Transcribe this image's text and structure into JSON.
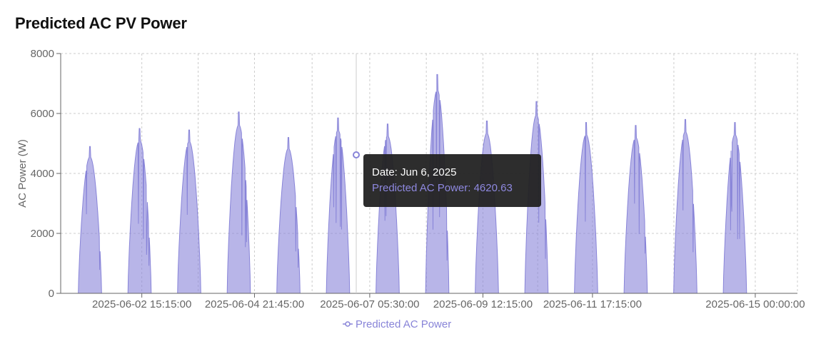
{
  "page": {
    "title": "Predicted AC PV Power"
  },
  "chart_data": {
    "type": "area",
    "title": "Predicted AC PV Power",
    "xlabel": "",
    "ylabel": "AC Power (W)",
    "ylim": [
      0,
      8000
    ],
    "yticks": [
      0,
      2000,
      4000,
      6000,
      8000
    ],
    "xticks": [
      "2025-06-02 15:15:00",
      "2025-06-04 21:45:00",
      "2025-06-07 05:30:00",
      "2025-06-09 12:15:00",
      "2025-06-11 17:15:00",
      "2025-06-15 00:00:00"
    ],
    "grid": true,
    "legend_position": "bottom",
    "series": [
      {
        "name": "Predicted AC Power",
        "color": "#8884d8",
        "days": [
          "2025-06-01",
          "2025-06-02",
          "2025-06-03",
          "2025-06-04",
          "2025-06-05",
          "2025-06-06",
          "2025-06-07",
          "2025-06-08",
          "2025-06-09",
          "2025-06-10",
          "2025-06-11",
          "2025-06-12",
          "2025-06-13",
          "2025-06-14"
        ],
        "daily_peak_w": [
          4900,
          5500,
          5450,
          6050,
          5200,
          5850,
          5650,
          7300,
          5750,
          6400,
          5700,
          5600,
          5800,
          5700
        ]
      }
    ]
  },
  "tooltip": {
    "date_text": "Date: Jun 6, 2025",
    "value_text": "Predicted AC Power: 4620.63"
  },
  "legend": {
    "label": "Predicted AC Power"
  }
}
